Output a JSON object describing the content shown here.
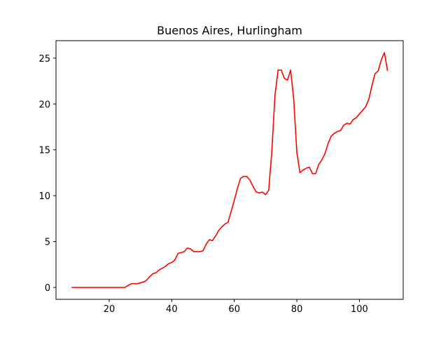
{
  "chart_data": {
    "type": "line",
    "title": "Buenos Aires, Hurlingham",
    "xlabel": "",
    "ylabel": "",
    "xlim": [
      3,
      114
    ],
    "ylim": [
      -1.3,
      26.9
    ],
    "x_ticks": [
      20,
      40,
      60,
      80,
      100
    ],
    "y_ticks": [
      0,
      5,
      10,
      15,
      20,
      25
    ],
    "grid": false,
    "legend": "none",
    "series": [
      {
        "color": "#ff0000",
        "x": [
          8,
          9,
          10,
          11,
          12,
          13,
          14,
          15,
          16,
          17,
          18,
          19,
          20,
          21,
          22,
          23,
          24,
          25,
          26,
          27,
          28,
          29,
          30,
          31,
          32,
          33,
          34,
          35,
          36,
          37,
          38,
          39,
          40,
          41,
          42,
          43,
          44,
          45,
          46,
          47,
          48,
          49,
          50,
          51,
          52,
          53,
          54,
          55,
          56,
          57,
          58,
          59,
          60,
          61,
          62,
          63,
          64,
          65,
          66,
          67,
          68,
          69,
          70,
          71,
          72,
          73,
          74,
          75,
          76,
          77,
          78,
          79,
          80,
          81,
          82,
          83,
          84,
          85,
          86,
          87,
          88,
          89,
          90,
          91,
          92,
          93,
          94,
          95,
          96,
          97,
          98,
          99,
          100,
          101,
          102,
          103,
          104,
          105,
          106,
          107,
          108,
          109
        ],
        "values": [
          0,
          0,
          0,
          0,
          0,
          0,
          0,
          0,
          0,
          0,
          0,
          0,
          0,
          0,
          0,
          0,
          0,
          0,
          0.2,
          0.4,
          0.4,
          0.4,
          0.5,
          0.6,
          0.8,
          1.2,
          1.5,
          1.6,
          1.9,
          2.1,
          2.3,
          2.6,
          2.7,
          3.0,
          3.7,
          3.8,
          3.9,
          4.3,
          4.2,
          3.9,
          3.9,
          3.9,
          4.0,
          4.7,
          5.2,
          5.1,
          5.6,
          6.2,
          6.6,
          6.9,
          7.1,
          8.3,
          9.5,
          10.8,
          11.9,
          12.1,
          12.1,
          11.7,
          11.0,
          10.4,
          10.3,
          10.4,
          10.1,
          10.6,
          14.8,
          20.9,
          23.7,
          23.7,
          22.8,
          22.6,
          23.7,
          20.5,
          14.7,
          12.5,
          12.8,
          13.0,
          13.1,
          12.4,
          12.4,
          13.4,
          13.9,
          14.6,
          15.7,
          16.5,
          16.8,
          17.0,
          17.1,
          17.7,
          17.9,
          17.8,
          18.3,
          18.5,
          18.9,
          19.3,
          19.7,
          20.5,
          22.0,
          23.3,
          23.6,
          24.8,
          25.6,
          23.6
        ]
      }
    ]
  }
}
